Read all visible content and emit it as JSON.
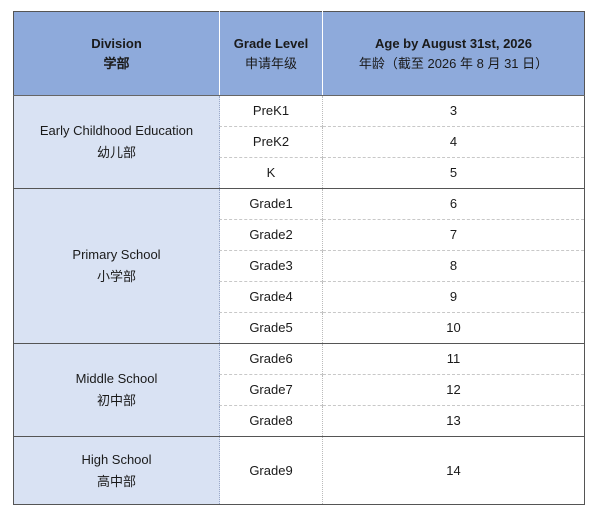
{
  "header": {
    "division_en": "Division",
    "division_zh": "学部",
    "grade_en": "Grade Level",
    "grade_zh": "申请年级",
    "age_en": "Age by August 31st, 2026",
    "age_zh": "年龄（截至 2026 年 8 月 31 日）"
  },
  "groups": [
    {
      "en": "Early Childhood Education",
      "zh": "幼儿部",
      "rows": [
        {
          "grade": "PreK1",
          "age": "3"
        },
        {
          "grade": "PreK2",
          "age": "4"
        },
        {
          "grade": "K",
          "age": "5"
        }
      ]
    },
    {
      "en": "Primary School",
      "zh": "小学部",
      "rows": [
        {
          "grade": "Grade1",
          "age": "6"
        },
        {
          "grade": "Grade2",
          "age": "7"
        },
        {
          "grade": "Grade3",
          "age": "8"
        },
        {
          "grade": "Grade4",
          "age": "9"
        },
        {
          "grade": "Grade5",
          "age": "10"
        }
      ]
    },
    {
      "en": "Middle School",
      "zh": "初中部",
      "rows": [
        {
          "grade": "Grade6",
          "age": "11"
        },
        {
          "grade": "Grade7",
          "age": "12"
        },
        {
          "grade": "Grade8",
          "age": "13"
        }
      ]
    },
    {
      "en": "High School",
      "zh": "高中部",
      "rows": [
        {
          "grade": "Grade9",
          "age": "14"
        }
      ]
    }
  ]
}
